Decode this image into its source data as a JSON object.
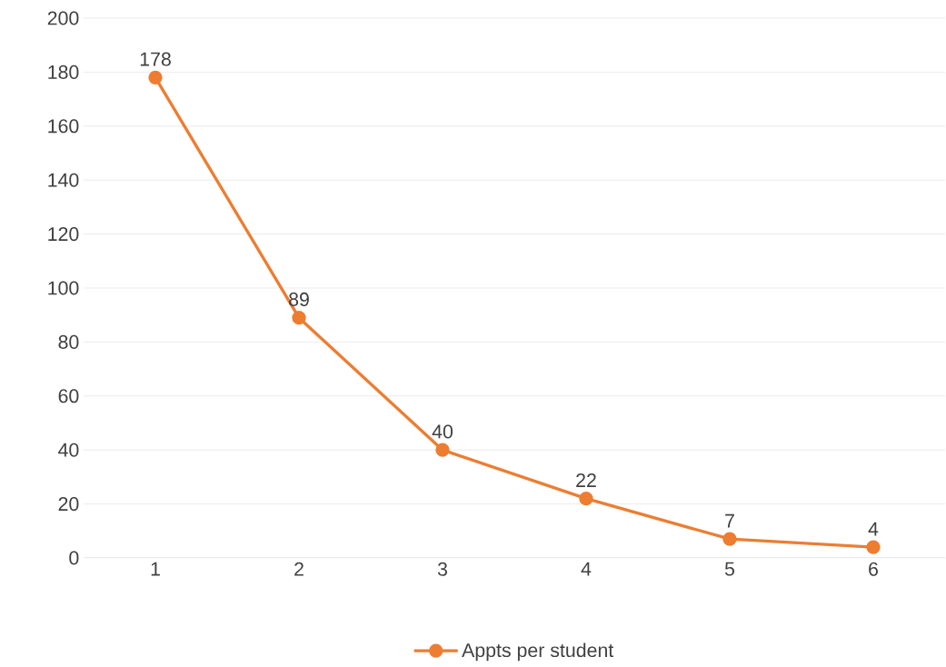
{
  "chart_data": {
    "type": "line",
    "categories": [
      "1",
      "2",
      "3",
      "4",
      "5",
      "6"
    ],
    "series": [
      {
        "name": "Appts per student",
        "color": "#ed7d31",
        "values": [
          178,
          89,
          40,
          22,
          7,
          4
        ]
      }
    ],
    "ylim": [
      0,
      200
    ],
    "yticks": [
      0,
      20,
      40,
      60,
      80,
      100,
      120,
      140,
      160,
      180,
      200
    ],
    "grid": "y",
    "legend": "bottom",
    "marker": "circle",
    "data_labels": true
  }
}
